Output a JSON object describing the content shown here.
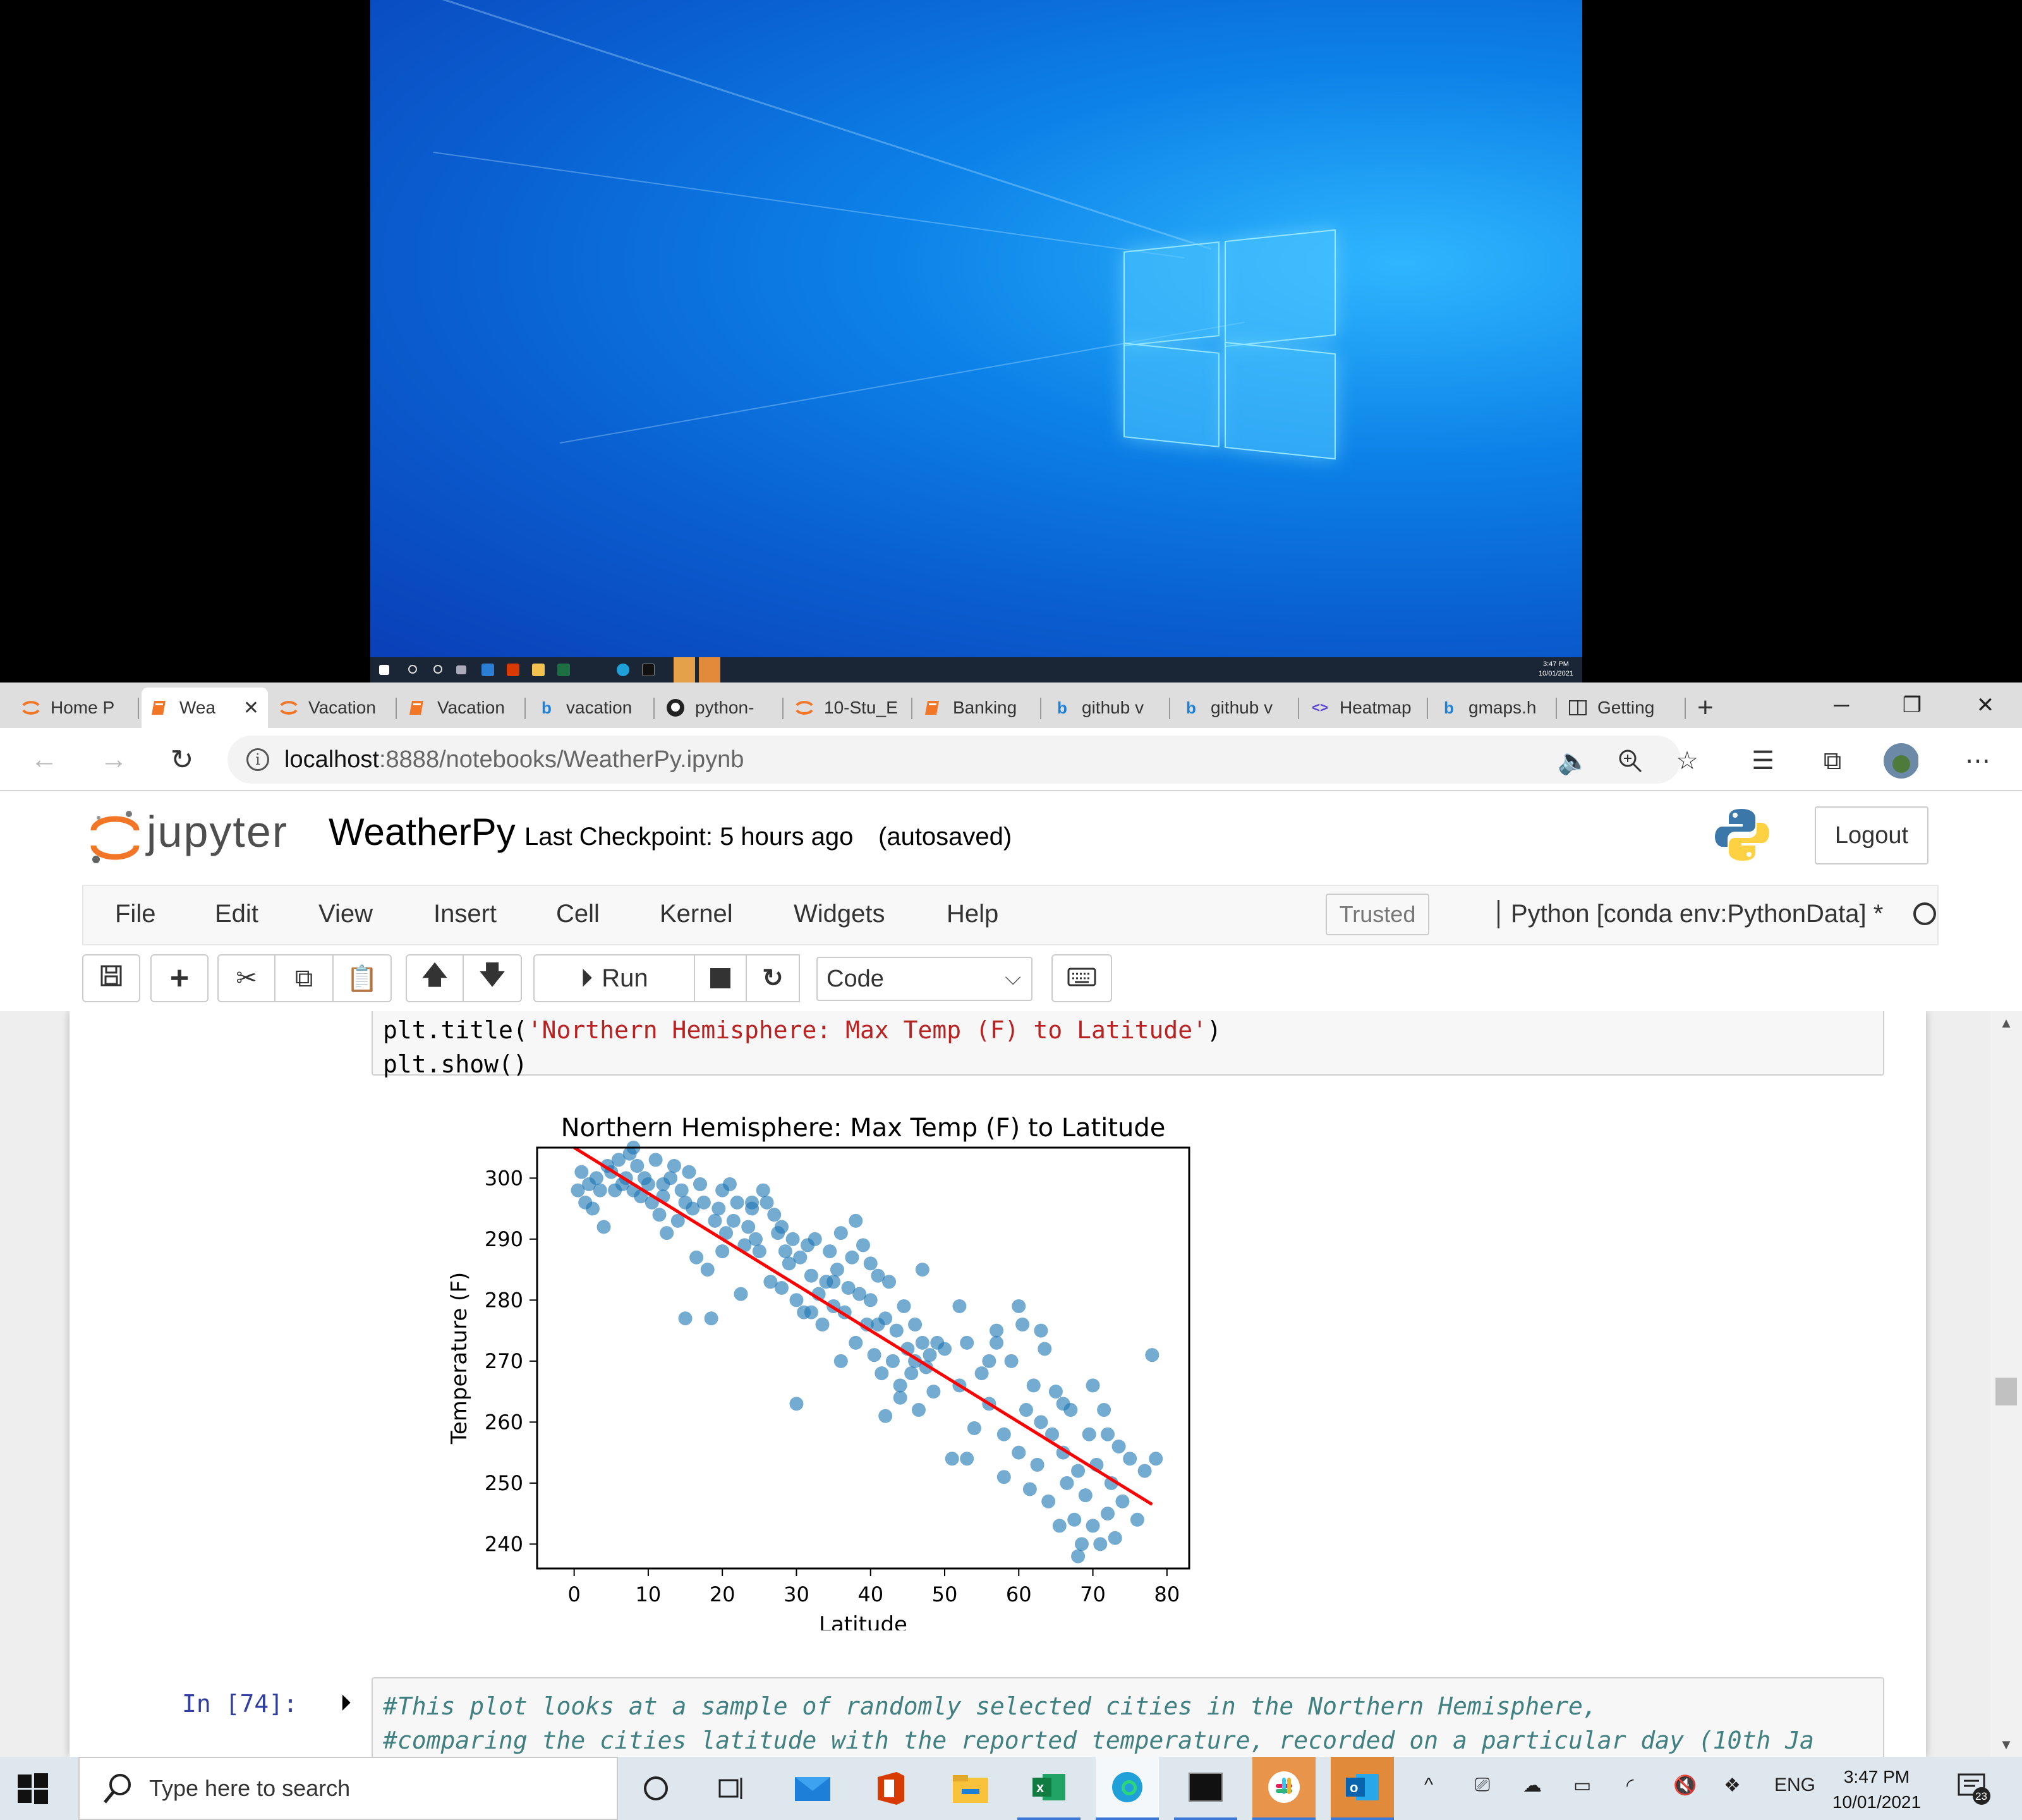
{
  "mini_taskbar": {
    "time": "3:47 PM",
    "date": "10/01/2021"
  },
  "browser": {
    "tabs": [
      {
        "label": "Home P",
        "favicon": "jupyter-icon"
      },
      {
        "label": "Wea",
        "favicon": "notebook-icon",
        "active": true
      },
      {
        "label": "Vacation",
        "favicon": "jupyter-icon"
      },
      {
        "label": "Vacation",
        "favicon": "notebook-icon"
      },
      {
        "label": "vacation",
        "favicon": "bing-icon"
      },
      {
        "label": "python-",
        "favicon": "github-icon"
      },
      {
        "label": "10-Stu_E",
        "favicon": "jupyter-icon"
      },
      {
        "label": "Banking",
        "favicon": "notebook-icon"
      },
      {
        "label": "github v",
        "favicon": "bing-icon"
      },
      {
        "label": "github v",
        "favicon": "bing-icon"
      },
      {
        "label": "Heatmap",
        "favicon": "code-icon"
      },
      {
        "label": "gmaps.h",
        "favicon": "bing-icon"
      },
      {
        "label": "Getting",
        "favicon": "reader-icon"
      }
    ],
    "url_host": "localhost",
    "url_rest": ":8888/notebooks/WeatherPy.ipynb"
  },
  "jupyter": {
    "brand": "jupyter",
    "notebook_name": "WeatherPy",
    "checkpoint": "Last Checkpoint: 5 hours ago",
    "autosaved": "(autosaved)",
    "logout": "Logout",
    "menu": [
      "File",
      "Edit",
      "View",
      "Insert",
      "Cell",
      "Kernel",
      "Widgets",
      "Help"
    ],
    "trusted": "Trusted",
    "kernel": "Python [conda env:PythonData] *",
    "toolbar": {
      "run_label": "Run",
      "cell_type": "Code"
    }
  },
  "cells": {
    "code_line1_pre": "plt.title(",
    "code_line1_str": "'Northern Hemisphere: Max Temp (F) to Latitude'",
    "code_line1_post": ")",
    "code_line2": "plt.show()",
    "prompt2": "In [74]:",
    "comment_line1": "#This plot looks at a sample of randomly selected cities in the Northern Hemisphere,",
    "comment_line2": "#comparing the cities latitude with the reported temperature, recorded on a particular day (10th Ja"
  },
  "chart_data": {
    "type": "scatter",
    "title": "Northern Hemisphere: Max Temp (F) to Latitude",
    "xlabel": "Latitude",
    "ylabel": "Temperature (F)",
    "xlim": [
      -5,
      83
    ],
    "ylim": [
      236,
      305
    ],
    "xticks": [
      0,
      10,
      20,
      30,
      40,
      50,
      60,
      70,
      80
    ],
    "yticks": [
      240,
      250,
      260,
      270,
      280,
      290,
      300
    ],
    "point_color": "#1f77b4",
    "line_color": "#ff0000",
    "regression": {
      "x": [
        0,
        78
      ],
      "y": [
        305,
        246.5
      ]
    },
    "points": [
      [
        0.5,
        298
      ],
      [
        1,
        301
      ],
      [
        1.5,
        296
      ],
      [
        2,
        299
      ],
      [
        2.5,
        295
      ],
      [
        3,
        300
      ],
      [
        3.5,
        298
      ],
      [
        4,
        292
      ],
      [
        4.5,
        302
      ],
      [
        5,
        301
      ],
      [
        5.5,
        298
      ],
      [
        6,
        303
      ],
      [
        6.5,
        299
      ],
      [
        7,
        300
      ],
      [
        7.5,
        304
      ],
      [
        8,
        298
      ],
      [
        8.5,
        302
      ],
      [
        9,
        297
      ],
      [
        9.5,
        300
      ],
      [
        10,
        299
      ],
      [
        10.5,
        296
      ],
      [
        11,
        303
      ],
      [
        11.5,
        294
      ],
      [
        12,
        297
      ],
      [
        12.5,
        291
      ],
      [
        13,
        300
      ],
      [
        13.5,
        302
      ],
      [
        14,
        293
      ],
      [
        14.5,
        298
      ],
      [
        15,
        296
      ],
      [
        15.5,
        301
      ],
      [
        16,
        295
      ],
      [
        16.5,
        287
      ],
      [
        17,
        299
      ],
      [
        17.5,
        296
      ],
      [
        18,
        285
      ],
      [
        18.5,
        277
      ],
      [
        19,
        293
      ],
      [
        19.5,
        295
      ],
      [
        20,
        298
      ],
      [
        20.5,
        291
      ],
      [
        21,
        299
      ],
      [
        21.5,
        293
      ],
      [
        22,
        296
      ],
      [
        22.5,
        281
      ],
      [
        23,
        289
      ],
      [
        23.5,
        292
      ],
      [
        24,
        295
      ],
      [
        24.5,
        290
      ],
      [
        25,
        288
      ],
      [
        25.5,
        298
      ],
      [
        26,
        296
      ],
      [
        26.5,
        283
      ],
      [
        27,
        294
      ],
      [
        27.5,
        291
      ],
      [
        28,
        282
      ],
      [
        28.5,
        288
      ],
      [
        29,
        286
      ],
      [
        29.5,
        290
      ],
      [
        30,
        280
      ],
      [
        30.5,
        287
      ],
      [
        31,
        278
      ],
      [
        31.5,
        289
      ],
      [
        32,
        284
      ],
      [
        32.5,
        290
      ],
      [
        33,
        281
      ],
      [
        33.5,
        276
      ],
      [
        34,
        283
      ],
      [
        34.5,
        288
      ],
      [
        35,
        279
      ],
      [
        35.5,
        285
      ],
      [
        36,
        291
      ],
      [
        36.5,
        278
      ],
      [
        37,
        282
      ],
      [
        37.5,
        287
      ],
      [
        38,
        273
      ],
      [
        38.5,
        281
      ],
      [
        39,
        289
      ],
      [
        39.5,
        276
      ],
      [
        40,
        280
      ],
      [
        40.5,
        271
      ],
      [
        41,
        284
      ],
      [
        41.5,
        268
      ],
      [
        42,
        277
      ],
      [
        42.5,
        283
      ],
      [
        43,
        270
      ],
      [
        43.5,
        275
      ],
      [
        44,
        266
      ],
      [
        44.5,
        279
      ],
      [
        45,
        272
      ],
      [
        45.5,
        268
      ],
      [
        46,
        276
      ],
      [
        46.5,
        262
      ],
      [
        47,
        273
      ],
      [
        47.5,
        269
      ],
      [
        48,
        271
      ],
      [
        48.5,
        265
      ],
      [
        49,
        273
      ],
      [
        50,
        272
      ],
      [
        51,
        254
      ],
      [
        52,
        266
      ],
      [
        53,
        273
      ],
      [
        54,
        259
      ],
      [
        55,
        268
      ],
      [
        56,
        263
      ],
      [
        57,
        273
      ],
      [
        58,
        258
      ],
      [
        59,
        270
      ],
      [
        60,
        255
      ],
      [
        60.5,
        276
      ],
      [
        61,
        262
      ],
      [
        61.5,
        249
      ],
      [
        62,
        266
      ],
      [
        62.5,
        253
      ],
      [
        63,
        260
      ],
      [
        63.5,
        272
      ],
      [
        64,
        247
      ],
      [
        64.5,
        258
      ],
      [
        65,
        265
      ],
      [
        65.5,
        243
      ],
      [
        66,
        255
      ],
      [
        66.5,
        250
      ],
      [
        67,
        262
      ],
      [
        67.5,
        244
      ],
      [
        68,
        252
      ],
      [
        68.5,
        240
      ],
      [
        69,
        248
      ],
      [
        69.5,
        258
      ],
      [
        70,
        243
      ],
      [
        70.5,
        253
      ],
      [
        71,
        240
      ],
      [
        71.5,
        262
      ],
      [
        72,
        245
      ],
      [
        72.5,
        250
      ],
      [
        73,
        241
      ],
      [
        73.5,
        256
      ],
      [
        74,
        247
      ],
      [
        75,
        254
      ],
      [
        76,
        244
      ],
      [
        77,
        252
      ],
      [
        78,
        271
      ],
      [
        78.5,
        254
      ],
      [
        15,
        277
      ],
      [
        20,
        288
      ],
      [
        30,
        263
      ],
      [
        42,
        261
      ],
      [
        53,
        254
      ],
      [
        58,
        251
      ],
      [
        63,
        275
      ],
      [
        68,
        238
      ],
      [
        35,
        283
      ],
      [
        38,
        293
      ],
      [
        40,
        286
      ],
      [
        44,
        264
      ],
      [
        47,
        285
      ],
      [
        56,
        270
      ],
      [
        60,
        279
      ],
      [
        66,
        263
      ],
      [
        70,
        266
      ],
      [
        72,
        258
      ],
      [
        8,
        305
      ],
      [
        12,
        299
      ],
      [
        24,
        296
      ],
      [
        28,
        292
      ],
      [
        32,
        278
      ],
      [
        36,
        270
      ],
      [
        41,
        276
      ],
      [
        46,
        270
      ],
      [
        52,
        279
      ],
      [
        57,
        275
      ]
    ]
  }
}
